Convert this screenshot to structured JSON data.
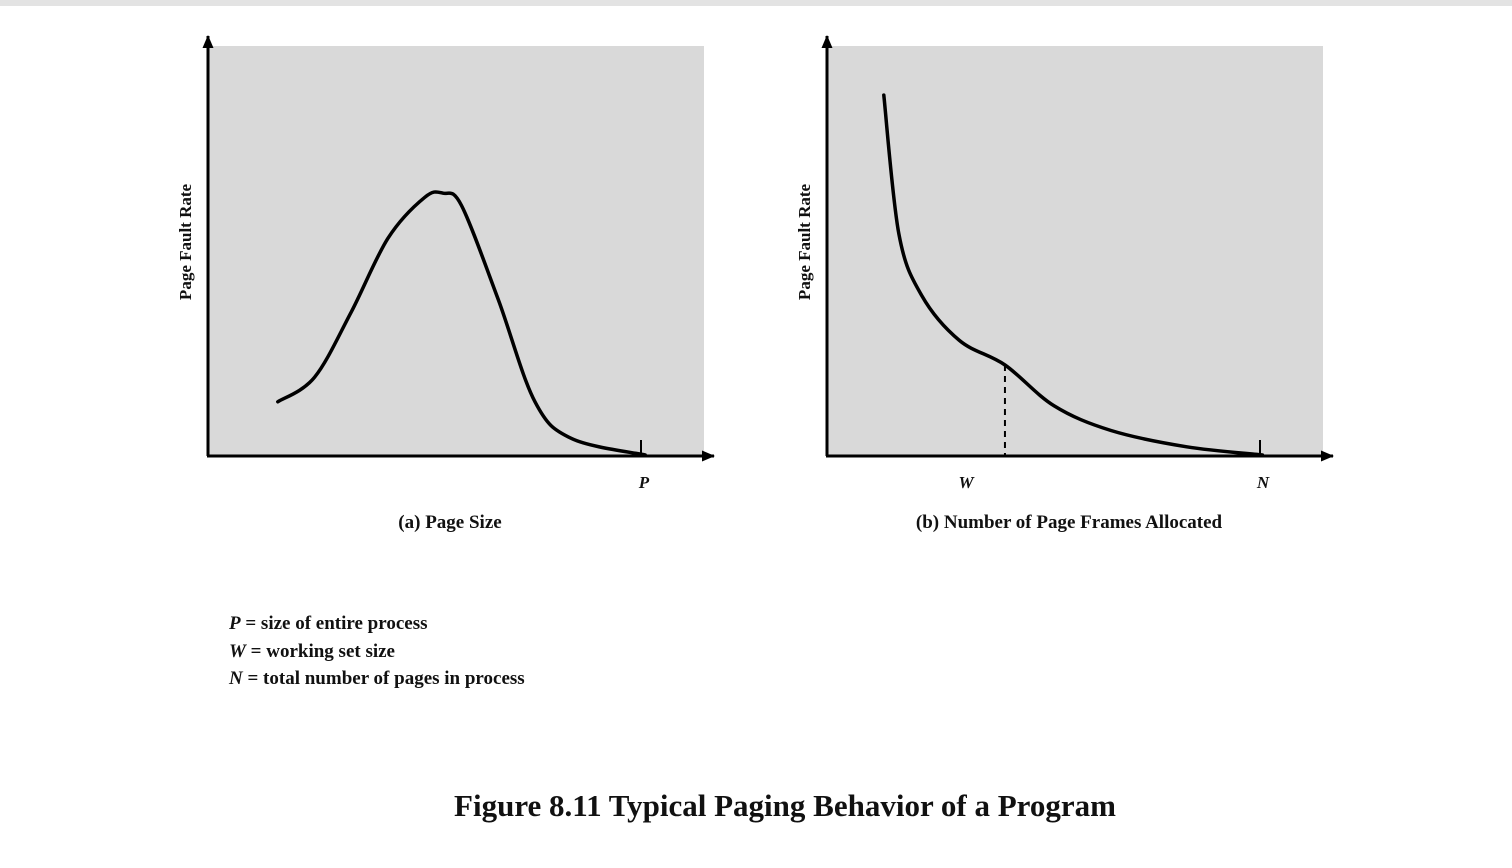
{
  "figure_title": "Figure 8.11  Typical Paging Behavior of a Program",
  "legend": [
    {
      "symbol": "P",
      "text": " = size of entire process"
    },
    {
      "symbol": "W",
      "text": " = working set size"
    },
    {
      "symbol": "N",
      "text": " = total number of pages in process"
    }
  ],
  "colors": {
    "plot_background": "#d9d9d9",
    "curve": "#000000"
  },
  "chart_data": [
    {
      "type": "line",
      "caption": "(a) Page Size",
      "xlabel": "",
      "ylabel": "Page Fault Rate",
      "x_ticks": [
        {
          "label": "P",
          "x": 1.0
        }
      ],
      "xlim": [
        -0.19,
        1.16
      ],
      "ylim": [
        0,
        1.0
      ],
      "grid": false,
      "series": [
        {
          "values": [
            {
              "x": 0.0,
              "y": 0.13
            },
            {
              "x": 0.1,
              "y": 0.19
            },
            {
              "x": 0.2,
              "y": 0.35
            },
            {
              "x": 0.3,
              "y": 0.53
            },
            {
              "x": 0.4,
              "y": 0.63
            },
            {
              "x": 0.45,
              "y": 0.64
            },
            {
              "x": 0.5,
              "y": 0.61
            },
            {
              "x": 0.6,
              "y": 0.38
            },
            {
              "x": 0.7,
              "y": 0.13
            },
            {
              "x": 0.8,
              "y": 0.04
            },
            {
              "x": 1.0,
              "y": 0.0
            }
          ]
        }
      ]
    },
    {
      "type": "line",
      "caption": "(b) Number of Page Frames Allocated",
      "xlabel": "",
      "ylabel": "Page Fault Rate",
      "x_ticks": [
        {
          "label": "W",
          "x": 0.32
        },
        {
          "label": "N",
          "x": 1.0
        }
      ],
      "xlim": [
        -0.15,
        1.16
      ],
      "ylim": [
        0,
        1.0
      ],
      "grid": false,
      "annotations": [
        {
          "type": "dashed-vertical",
          "x": 0.32,
          "y": 0.22
        }
      ],
      "series": [
        {
          "values": [
            {
              "x": 0.0,
              "y": 0.88
            },
            {
              "x": 0.04,
              "y": 0.54
            },
            {
              "x": 0.1,
              "y": 0.39
            },
            {
              "x": 0.2,
              "y": 0.28
            },
            {
              "x": 0.32,
              "y": 0.22
            },
            {
              "x": 0.45,
              "y": 0.12
            },
            {
              "x": 0.6,
              "y": 0.06
            },
            {
              "x": 0.8,
              "y": 0.02
            },
            {
              "x": 1.0,
              "y": 0.0
            }
          ]
        }
      ]
    }
  ]
}
